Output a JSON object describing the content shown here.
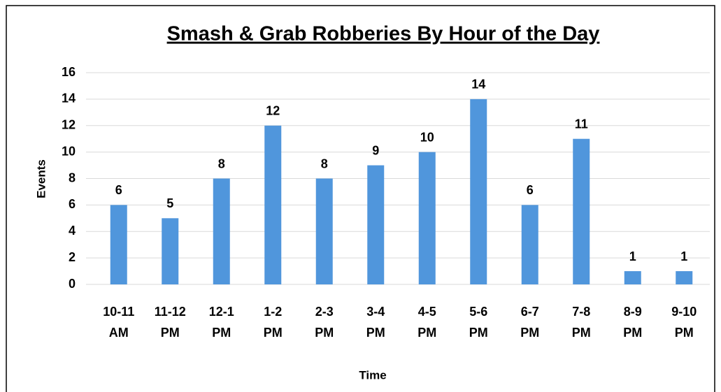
{
  "chart_data": {
    "type": "bar",
    "title": "Smash & Grab Robberies By Hour of the Day",
    "x_label": "Time",
    "y_label": "Events",
    "categories": [
      "10-11 AM",
      "11-12 PM",
      "12-1 PM",
      "1-2 PM",
      "2-3 PM",
      "3-4 PM",
      "4-5 PM",
      "5-6 PM",
      "6-7 PM",
      "7-8 PM",
      "8-9 PM",
      "9-10 PM"
    ],
    "values": [
      6,
      5,
      8,
      12,
      8,
      9,
      10,
      14,
      6,
      11,
      1,
      1
    ],
    "color": "#5096dc",
    "ylim": [
      0,
      16
    ],
    "yticks": [
      0,
      2,
      4,
      6,
      8,
      10,
      12,
      14,
      16
    ],
    "grid": true
  }
}
